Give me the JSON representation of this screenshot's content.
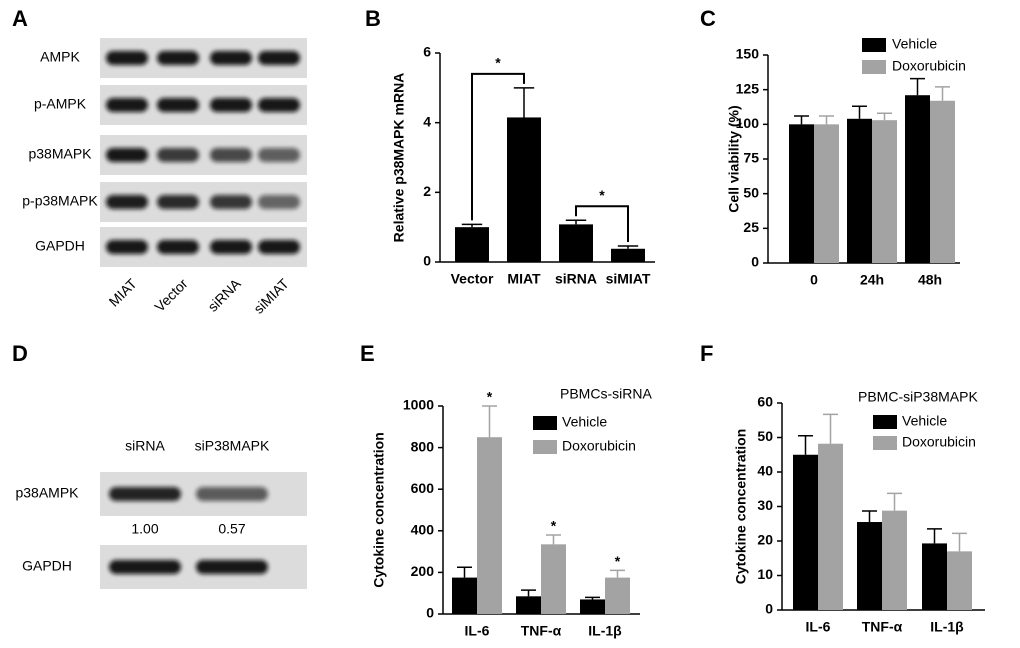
{
  "chart_data": [
    {
      "type": "bar",
      "panel": "B",
      "ylabel": "Relative p38MAPK mRNA",
      "categories": [
        "Vector",
        "MIAT",
        "siRNA",
        "siMIAT"
      ],
      "values": [
        1.0,
        4.15,
        1.08,
        0.38
      ],
      "errors": [
        0.08,
        0.85,
        0.12,
        0.08
      ],
      "color": "#000000",
      "ylim": [
        0,
        6
      ],
      "yticks": [
        0,
        2,
        4,
        6
      ],
      "annotations": [
        {
          "text": "*",
          "between": [
            0,
            1
          ]
        },
        {
          "text": "*",
          "between": [
            2,
            3
          ]
        }
      ]
    },
    {
      "type": "bar",
      "panel": "C",
      "ylabel": "Cell viability (%)",
      "categories": [
        "0",
        "24h",
        "48h"
      ],
      "series": [
        {
          "name": "Vehicle",
          "color": "#000000",
          "values": [
            100,
            104,
            121
          ],
          "errors": [
            6,
            9,
            12
          ]
        },
        {
          "name": "Doxorubicin",
          "color": "#a3a3a3",
          "values": [
            100,
            103,
            117
          ],
          "errors": [
            6,
            5,
            10
          ]
        }
      ],
      "ylim": [
        0,
        150
      ],
      "yticks": [
        0,
        25,
        50,
        75,
        100,
        125,
        150
      ],
      "legend": "top-right"
    },
    {
      "type": "bar",
      "panel": "E",
      "ylabel": "Cytokine concentration",
      "legend_title": "PBMCs-siRNA",
      "categories": [
        "IL-6",
        "TNF-α",
        "IL-1β"
      ],
      "series": [
        {
          "name": "Vehicle",
          "color": "#000000",
          "values": [
            175,
            85,
            70
          ],
          "errors": [
            50,
            30,
            10
          ]
        },
        {
          "name": "Doxorubicin",
          "color": "#a3a3a3",
          "values": [
            850,
            335,
            175
          ],
          "errors": [
            150,
            45,
            35
          ]
        }
      ],
      "ylim": [
        0,
        1000
      ],
      "yticks": [
        0,
        200,
        400,
        600,
        800,
        1000
      ],
      "legend": "top-right",
      "annotations": [
        {
          "text": "*",
          "series": 1,
          "category": 0
        },
        {
          "text": "*",
          "series": 1,
          "category": 1
        },
        {
          "text": "*",
          "series": 1,
          "category": 2
        }
      ]
    },
    {
      "type": "bar",
      "panel": "F",
      "ylabel": "Cytokine concentration",
      "legend_title": "PBMC-siP38MAPK",
      "categories": [
        "IL-6",
        "TNF-α",
        "IL-1β"
      ],
      "series": [
        {
          "name": "Vehicle",
          "color": "#000000",
          "values": [
            45,
            25.5,
            19.3
          ],
          "errors": [
            5.5,
            3.2,
            4.2
          ]
        },
        {
          "name": "Doxorubicin",
          "color": "#a3a3a3",
          "values": [
            48.2,
            28.8,
            17
          ],
          "errors": [
            8.5,
            5,
            5.2
          ]
        }
      ],
      "ylim": [
        0,
        60
      ],
      "yticks": [
        0,
        10,
        20,
        30,
        40,
        50,
        60
      ],
      "legend": "top-right"
    }
  ],
  "blots": [
    {
      "panel": "A",
      "rows": [
        "AMPK",
        "p-AMPK",
        "p38MAPK",
        "p-p38MAPK",
        "GAPDH"
      ],
      "lanes": [
        "MIAT",
        "Vector",
        "siRNA",
        "siMIAT"
      ]
    },
    {
      "panel": "D",
      "rows": [
        "p38AMPK",
        "GAPDH"
      ],
      "lanes": [
        "siRNA",
        "siP38MAPK"
      ],
      "quantification": [
        {
          "value": 1,
          "label": "1.00"
        },
        0.57
      ]
    }
  ]
}
